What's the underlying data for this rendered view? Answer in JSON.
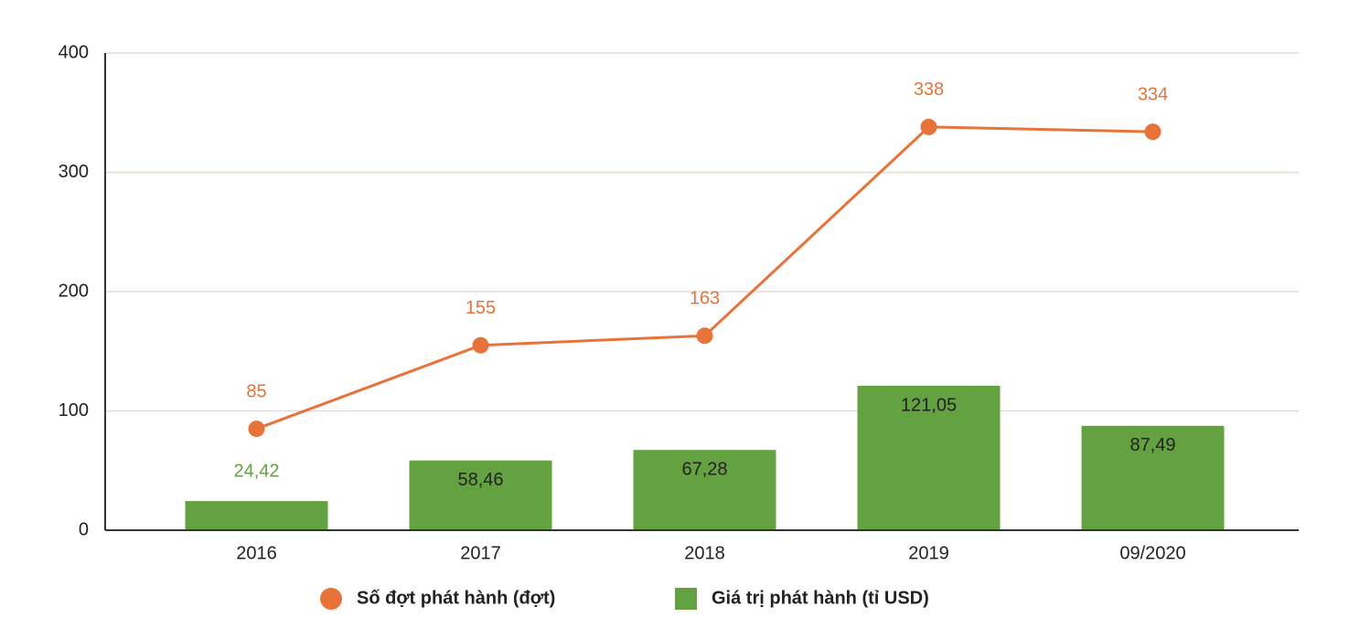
{
  "chart_data": {
    "type": "combo",
    "categories": [
      "2016",
      "2017",
      "2018",
      "2019",
      "09/2020"
    ],
    "series": [
      {
        "name": "Số đợt phát hành (đợt)",
        "type": "line",
        "color": "#e8733a",
        "values": [
          85,
          155,
          163,
          338,
          334
        ]
      },
      {
        "name": "Giá trị phát hành (tỉ USD)",
        "type": "bar",
        "color": "#64a140",
        "values": [
          24.42,
          58.46,
          67.28,
          121.05,
          87.49
        ],
        "value_labels": [
          "24,42",
          "58,46",
          "67,28",
          "121,05",
          "87,49"
        ]
      }
    ],
    "ylim": [
      0,
      400
    ],
    "yticks": [
      0,
      100,
      200,
      300,
      400
    ],
    "grid": true
  }
}
